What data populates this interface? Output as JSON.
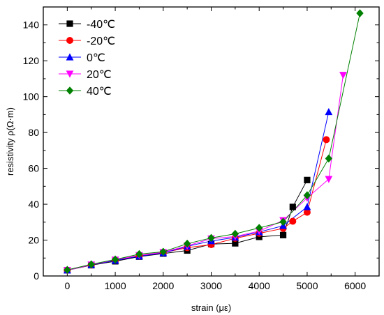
{
  "chart_data": {
    "type": "line",
    "xlabel": "strain (με)",
    "ylabel": "resistivity ρ(Ω·m)",
    "xlim": [
      -500,
      6500
    ],
    "ylim": [
      0,
      150
    ],
    "xticks": [
      0,
      1000,
      2000,
      3000,
      4000,
      5000,
      6000
    ],
    "yticks": [
      0,
      20,
      40,
      60,
      80,
      100,
      120,
      140
    ],
    "minor_ticks": true,
    "grid": false,
    "legend_position": "top-left",
    "series": [
      {
        "name": "-40℃",
        "color": "#000000",
        "marker": "square",
        "points": [
          [
            0,
            3.2
          ],
          [
            500,
            6.0
          ],
          [
            1000,
            8.2
          ],
          [
            1500,
            10.8
          ],
          [
            2000,
            12.5
          ],
          [
            2500,
            14.2
          ],
          [
            3000,
            17.8
          ],
          [
            3500,
            18.2
          ],
          [
            4000,
            21.8
          ],
          [
            4500,
            22.8
          ],
          [
            4700,
            38.5
          ],
          [
            5000,
            53.5
          ]
        ]
      },
      {
        "name": "-20℃",
        "color": "#ff0000",
        "marker": "circle",
        "points": [
          [
            0,
            3.2
          ],
          [
            500,
            6.1
          ],
          [
            1000,
            8.8
          ],
          [
            1500,
            11.2
          ],
          [
            2000,
            13.0
          ],
          [
            2500,
            15.8
          ],
          [
            3000,
            17.5
          ],
          [
            3500,
            21.0
          ],
          [
            4000,
            23.8
          ],
          [
            4500,
            26.5
          ],
          [
            4700,
            30.5
          ],
          [
            5000,
            35.5
          ],
          [
            5400,
            76.0
          ]
        ]
      },
      {
        "name": "0℃",
        "color": "#0000ff",
        "marker": "triangle-up",
        "points": [
          [
            0,
            3.2
          ],
          [
            500,
            6.2
          ],
          [
            1000,
            8.6
          ],
          [
            1500,
            11.0
          ],
          [
            2000,
            12.8
          ],
          [
            2500,
            16.5
          ],
          [
            3000,
            19.5
          ],
          [
            3500,
            21.5
          ],
          [
            4000,
            24.5
          ],
          [
            4500,
            28.0
          ],
          [
            5000,
            38.5
          ],
          [
            5450,
            91.5
          ]
        ]
      },
      {
        "name": "20℃",
        "color": "#ff00ff",
        "marker": "triangle-down",
        "points": [
          [
            0,
            3.2
          ],
          [
            500,
            6.3
          ],
          [
            1000,
            9.0
          ],
          [
            1500,
            11.5
          ],
          [
            2000,
            13.2
          ],
          [
            2500,
            16.8
          ],
          [
            3000,
            20.8
          ],
          [
            3500,
            22.0
          ],
          [
            4000,
            25.0
          ],
          [
            4500,
            31.0
          ],
          [
            5000,
            43.5
          ],
          [
            5450,
            54.0
          ],
          [
            5750,
            112.0
          ]
        ]
      },
      {
        "name": "40℃",
        "color": "#008000",
        "marker": "diamond",
        "points": [
          [
            0,
            3.4
          ],
          [
            500,
            6.5
          ],
          [
            1000,
            9.2
          ],
          [
            1500,
            12.2
          ],
          [
            2000,
            13.5
          ],
          [
            2500,
            18.0
          ],
          [
            3000,
            21.2
          ],
          [
            3500,
            23.5
          ],
          [
            4000,
            26.8
          ],
          [
            4500,
            30.2
          ],
          [
            5000,
            45.0
          ],
          [
            5450,
            65.5
          ],
          [
            6100,
            146.5
          ]
        ]
      }
    ]
  }
}
